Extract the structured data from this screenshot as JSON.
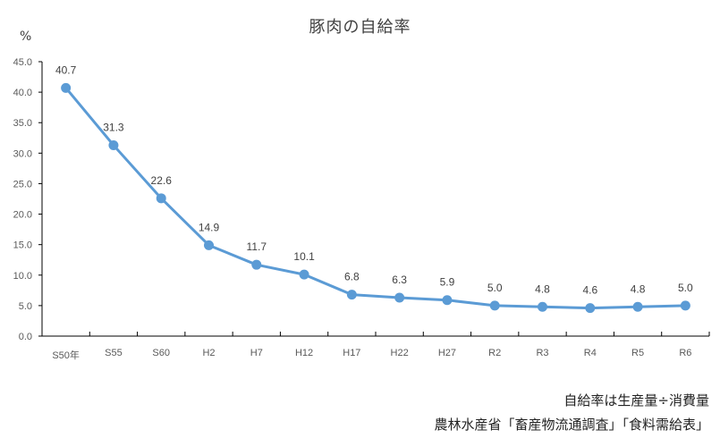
{
  "chart_data": {
    "type": "line",
    "title": "豚肉の自給率",
    "ylabel": "%",
    "xlabel": "",
    "ylim": [
      0,
      45
    ],
    "yticks": [
      "0.0",
      "5.0",
      "10.0",
      "15.0",
      "20.0",
      "25.0",
      "30.0",
      "35.0",
      "40.0",
      "45.0"
    ],
    "categories": [
      "S50年",
      "S55",
      "S60",
      "H2",
      "H7",
      "H12",
      "H17",
      "H22",
      "H27",
      "R2",
      "R3",
      "R4",
      "R5",
      "R6"
    ],
    "series": [
      {
        "name": "豚肉の自給率",
        "color": "#5B9BD5",
        "values": [
          40.7,
          31.3,
          22.6,
          14.9,
          11.7,
          10.1,
          6.8,
          6.3,
          5.9,
          5.0,
          4.8,
          4.6,
          4.8,
          5.0
        ],
        "labels": [
          "40.7",
          "31.3",
          "22.6",
          "14.9",
          "11.7",
          "10.1",
          "6.8",
          "6.3",
          "5.9",
          "5.0",
          "4.8",
          "4.6",
          "4.8",
          "5.0"
        ]
      }
    ],
    "grid": false,
    "legend": "none",
    "annotations": [
      "自給率は生産量÷消費量",
      "農林水産省「畜産物流通調査」「食料需給表」"
    ]
  },
  "header": {
    "title": "豚肉の自給率",
    "unit": "%"
  },
  "notes": {
    "formula": "自給率は生産量÷消費量",
    "source": "農林水産省「畜産物流通調査」「食料需給表」"
  }
}
